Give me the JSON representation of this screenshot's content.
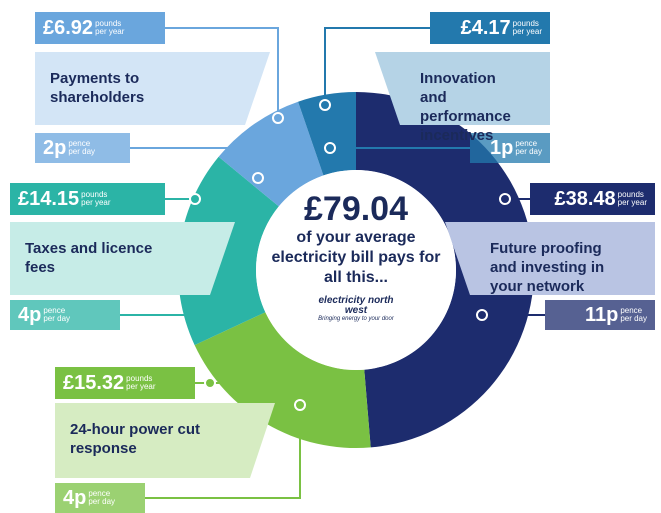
{
  "chart_data": {
    "type": "pie",
    "total_label": "£79.04",
    "center_text": "of your average electricity bill pays for all this...",
    "logo_text": "electricity north west",
    "tagline": "Bringing energy to your door",
    "categories": [
      "Future proofing and investing in your network",
      "24-hour power cut response",
      "Taxes and licence fees",
      "Payments to shareholders",
      "Innovation and performance incentives"
    ],
    "values": [
      38.48,
      15.32,
      14.15,
      6.92,
      4.17
    ],
    "value_labels": [
      "£38.48",
      "£15.32",
      "£14.15",
      "£6.92",
      "£4.17"
    ],
    "day_labels": [
      "11p",
      "4p",
      "4p",
      "2p",
      "1p"
    ],
    "colors": [
      "#1d2c6e",
      "#7ac143",
      "#2bb4a6",
      "#6aa6dd",
      "#2379ad"
    ],
    "light_colors": [
      "#b9c4e3",
      "#d6ecc2",
      "#c6ece7",
      "#d3e5f6",
      "#b5d3e6"
    ],
    "year_unit": [
      "pounds",
      "per year"
    ],
    "day_unit": [
      "pence",
      "per day"
    ]
  }
}
